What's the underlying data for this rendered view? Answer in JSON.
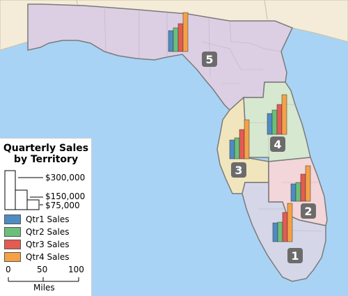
{
  "legend": {
    "title_line1": "Quarterly Sales",
    "title_line2": "by Territory",
    "size_labels": [
      "$300,000",
      "$150,000",
      "$75,000"
    ],
    "quarters": [
      {
        "label": "Qtr1 Sales",
        "color": "#4e8cc2"
      },
      {
        "label": "Qtr2 Sales",
        "color": "#6bbf7a"
      },
      {
        "label": "Qtr3 Sales",
        "color": "#e45b52"
      },
      {
        "label": "Qtr4 Sales",
        "color": "#f4a147"
      }
    ],
    "scale": {
      "ticks": [
        "0",
        "50",
        "100"
      ],
      "unit": "Miles"
    }
  },
  "territories": [
    {
      "id": "5",
      "label": "5",
      "color": "#dccfe3"
    },
    {
      "id": "4",
      "label": "4",
      "color": "#d6e8cf"
    },
    {
      "id": "3",
      "label": "3",
      "color": "#f1e5bd"
    },
    {
      "id": "2",
      "label": "2",
      "color": "#f3d6d9"
    },
    {
      "id": "1",
      "label": "1",
      "color": "#d5d6e8"
    }
  ],
  "colors": {
    "water": "#a9d3f5",
    "land_outside": "#f4ecd8",
    "border": "#7a7a7a",
    "badge": "#6b6b6b"
  }
}
